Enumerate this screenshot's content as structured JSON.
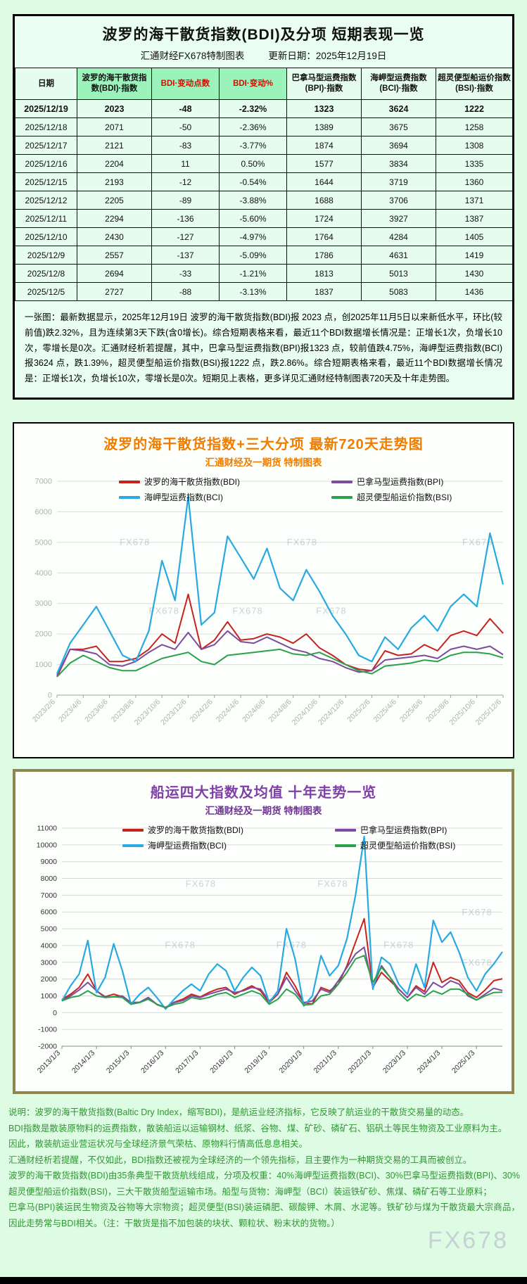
{
  "colors": {
    "page_bg": "#defbe4",
    "table_box_bg": "#eafdf2",
    "chart_box_bg": "#fcfffc",
    "table_header_green": "#9bf3bb",
    "table_cell_bg": "#e6fcef",
    "header_red_text": "#cc1100",
    "orange_title": "#ef7d00",
    "purple_title": "#8040a8",
    "footer_green": "#2f9632",
    "bdi_red": "#c62320",
    "bpi_purple": "#7d4ba0",
    "bci_blue": "#27aae1",
    "bsi_green": "#2aa24b",
    "box3_border": "#8f864f"
  },
  "watermark": "FX678",
  "table_section": {
    "title": "波罗的海干散货指数(BDI)及分项 短期表现一览",
    "brand": "汇通财经FX678特制图表",
    "update_date": "更新日期：2025年12月19日",
    "columns": [
      "日期",
      "波罗的海干散货指数(BDI)·指数",
      "BDI·变动点数",
      "BDI·变动%",
      "巴拿马型运费指数(BPI)·指数",
      "海岬型运费指数(BCI)·指数",
      "超灵便型船运价指数(BSI)·指数"
    ],
    "rows": [
      [
        "2025/12/19",
        "2023",
        "-48",
        "-2.32%",
        "1323",
        "3624",
        "1222"
      ],
      [
        "2025/12/18",
        "2071",
        "-50",
        "-2.36%",
        "1389",
        "3675",
        "1258"
      ],
      [
        "2025/12/17",
        "2121",
        "-83",
        "-3.77%",
        "1874",
        "3694",
        "1308"
      ],
      [
        "2025/12/16",
        "2204",
        "11",
        "0.50%",
        "1577",
        "3834",
        "1335"
      ],
      [
        "2025/12/15",
        "2193",
        "-12",
        "-0.54%",
        "1644",
        "3719",
        "1360"
      ],
      [
        "2025/12/12",
        "2205",
        "-89",
        "-3.88%",
        "1688",
        "3706",
        "1371"
      ],
      [
        "2025/12/11",
        "2294",
        "-136",
        "-5.60%",
        "1724",
        "3927",
        "1387"
      ],
      [
        "2025/12/10",
        "2430",
        "-127",
        "-4.97%",
        "1764",
        "4284",
        "1405"
      ],
      [
        "2025/12/9",
        "2557",
        "-137",
        "-5.09%",
        "1786",
        "4631",
        "1419"
      ],
      [
        "2025/12/8",
        "2694",
        "-33",
        "-1.21%",
        "1813",
        "5013",
        "1430"
      ],
      [
        "2025/12/5",
        "2727",
        "-88",
        "-3.13%",
        "1837",
        "5083",
        "1436"
      ]
    ],
    "summary": "一张图：最新数据显示，2025年12月19日 波罗的海干散货指数(BDI)报 2023 点，创2025年11月5日以来新低水平，环比(较前值)跌2.32%，且为连续第3天下跌(含0增长)。综合短期表格来看，最近11个BDI数据增长情况是：正增长1次，负增长10次，零增长是0次。汇通财经析若提醒，其中，巴拿马型运费指数(BPI)报1323 点，较前值跌4.75%，海岬型运费指数(BCI)报3624 点，跌1.39%，超灵便型船运价指数(BSI)报1222 点，跌2.86%。综合短期表格来看，最近11个BDI数据增长情况是：正增长1次，负增长10次，零增长是0次。短期见上表格，更多详见汇通财经特制图表720天及十年走势图。"
  },
  "footer_lines": [
    "说明：波罗的海干散货指数(Baltic Dry Index，缩写BDI)，是航运业经济指标，它反映了航运业的干散货交易量的动态。",
    "BDI指数是散装原物料的运费指数，散装船运以运输钢材、纸浆、谷物、煤、矿砂、磷矿石、铝矾土等民生物资及工业原料为主。",
    "因此，散装航运业营运状况与全球经济景气荣枯、原物料行情高低息息相关。",
    "汇通财经析若提醒，不仅如此，BDI指数还被视为全球经济的一个领先指标，且主要作为一种期货交易的工具而被创立。",
    "波罗的海干散货指数(BDI)由35条典型干散货航线组成，分项及权重：40%海岬型运费指数(BCI)、30%巴拿马型运费指数(BPI)、30%超灵便型船运价指数(BSI)，三大干散货船型运输市场。船型与货物：海岬型（BCI）装运铁矿砂、焦煤、磷矿石等工业原料；",
    "巴拿马(BPI)装运民生物资及谷物等大宗物资；超灵便型(BSI)装运磷肥、碳酸钾、木屑、水泥等。铁矿砂与煤为干散货最大宗商品，因此走势常与BDI相关。（注：干散货是指不加包装的块状、颗粒状、粉末状的货物。）"
  ],
  "chart_data": [
    {
      "id": "bdi-720day",
      "type": "line",
      "title": "波罗的海干散货指数+三大分项  最新720天走势图",
      "subtitle": "汇通财经及一期货 特制图表",
      "ylim": [
        0,
        7000
      ],
      "ytick_step": 1000,
      "grid": true,
      "legend_position": "top-inside",
      "x_tick_labels": [
        "2023/2/6",
        "2023/4/6",
        "2023/6/6",
        "2023/8/6",
        "2023/10/6",
        "2023/12/6",
        "2024/2/6",
        "2024/4/6",
        "2024/6/6",
        "2024/8/6",
        "2024/10/6",
        "2024/12/6",
        "2025/2/6",
        "2025/4/6",
        "2025/6/6",
        "2025/8/6",
        "2025/10/6",
        "2025/12/6"
      ],
      "x_tick_indices": [
        0,
        2,
        4,
        6,
        8,
        10,
        12,
        14,
        16,
        18,
        20,
        22,
        24,
        26,
        28,
        30,
        32,
        34
      ],
      "series": [
        {
          "name": "波罗的海干散货指数(BDI)",
          "color": "#c62320",
          "values": [
            600,
            1500,
            1500,
            1600,
            1100,
            1100,
            1200,
            1500,
            2000,
            1700,
            3300,
            1500,
            1800,
            2400,
            1800,
            1850,
            2000,
            1900,
            1700,
            2000,
            1550,
            1300,
            1000,
            850,
            800,
            1450,
            1300,
            1350,
            1650,
            1450,
            1950,
            2100,
            1950,
            2500,
            2023
          ]
        },
        {
          "name": "巴拿马型运费指数(BPI)",
          "color": "#7d4ba0",
          "values": [
            650,
            1500,
            1450,
            1350,
            1000,
            950,
            1100,
            1400,
            1650,
            1500,
            2050,
            1500,
            1650,
            2100,
            1750,
            1700,
            1900,
            1700,
            1500,
            1400,
            1200,
            1100,
            900,
            750,
            800,
            1150,
            1200,
            1250,
            1300,
            1200,
            1500,
            1600,
            1500,
            1600,
            1323
          ]
        },
        {
          "name": "海岬型运费指数(BCI)",
          "color": "#27aae1",
          "values": [
            700,
            1700,
            2300,
            2900,
            2100,
            1300,
            1100,
            2100,
            4400,
            3100,
            6500,
            2300,
            2700,
            5200,
            4500,
            3800,
            4800,
            3500,
            3100,
            4100,
            3400,
            2600,
            2000,
            1300,
            1100,
            1900,
            1500,
            2200,
            2600,
            2100,
            2900,
            3300,
            2900,
            5300,
            3624
          ]
        },
        {
          "name": "超灵便型船运价指数(BSI)",
          "color": "#2aa24b",
          "values": [
            600,
            1050,
            1300,
            1100,
            900,
            800,
            800,
            1000,
            1200,
            1300,
            1400,
            1100,
            1000,
            1300,
            1350,
            1400,
            1450,
            1500,
            1350,
            1300,
            1400,
            1200,
            1000,
            800,
            700,
            950,
            1000,
            1050,
            1150,
            1100,
            1300,
            1400,
            1400,
            1350,
            1222
          ]
        }
      ],
      "watermarks": [
        [
          0.15,
          0.3
        ],
        [
          0.55,
          0.3
        ],
        [
          0.97,
          0.3
        ],
        [
          0.22,
          0.62
        ],
        [
          0.42,
          0.62
        ],
        [
          0.62,
          0.62
        ]
      ]
    },
    {
      "id": "bdi-10year",
      "type": "line",
      "title": "船运四大指数及均值 十年走势一览",
      "subtitle": "汇通财经及一期货 特制图表",
      "ylim": [
        -2000,
        11000
      ],
      "ytick_step": 1000,
      "grid": true,
      "legend_position": "top-inside",
      "x_tick_labels": [
        "2013/1/3",
        "2014/1/3",
        "2015/1/3",
        "2016/1/3",
        "2017/1/3",
        "2018/1/3",
        "2019/1/3",
        "2020/1/3",
        "2021/1/3",
        "2022/1/3",
        "2023/1/3",
        "2024/1/3",
        "2025/1/3"
      ],
      "x_tick_indices": [
        0,
        4,
        8,
        12,
        16,
        20,
        24,
        28,
        32,
        36,
        40,
        44,
        48
      ],
      "series": [
        {
          "name": "波罗的海干散货指数(BDI)",
          "color": "#c62320",
          "values": [
            780,
            1100,
            1500,
            2300,
            1300,
            950,
            1100,
            950,
            560,
            600,
            900,
            480,
            300,
            620,
            800,
            1100,
            930,
            1200,
            1400,
            1500,
            1100,
            1350,
            1600,
            1300,
            600,
            1100,
            2400,
            1600,
            580,
            520,
            1500,
            1300,
            1700,
            2800,
            4200,
            5600,
            1500,
            2400,
            1900,
            1400,
            900,
            1600,
            1250,
            3000,
            1800,
            2100,
            1900,
            1200,
            900,
            1350,
            1900,
            2023
          ]
        },
        {
          "name": "巴拿马型运费指数(BPI)",
          "color": "#7d4ba0",
          "values": [
            700,
            1000,
            1350,
            1800,
            1300,
            900,
            950,
            1000,
            600,
            620,
            900,
            500,
            320,
            600,
            720,
            1000,
            900,
            1100,
            1250,
            1400,
            1200,
            1300,
            1500,
            1400,
            700,
            1100,
            2100,
            1300,
            600,
            700,
            1400,
            1200,
            1900,
            2700,
            3500,
            3900,
            1500,
            2800,
            2100,
            1400,
            900,
            1500,
            1100,
            1800,
            1500,
            1900,
            1700,
            1000,
            750,
            1100,
            1450,
            1323
          ]
        },
        {
          "name": "海岬型运费指数(BCI)",
          "color": "#27aae1",
          "values": [
            700,
            1600,
            2300,
            4300,
            1200,
            2100,
            4100,
            2500,
            500,
            1100,
            1500,
            900,
            220,
            800,
            1300,
            1700,
            1300,
            2300,
            2900,
            2500,
            1300,
            2100,
            2700,
            2200,
            600,
            1300,
            5000,
            3200,
            400,
            1000,
            3400,
            2200,
            2800,
            4400,
            7000,
            10500,
            1400,
            3300,
            2900,
            1700,
            1100,
            2900,
            1500,
            5500,
            4200,
            4800,
            3600,
            2100,
            1300,
            2300,
            2900,
            3624
          ]
        },
        {
          "name": "超灵便型船运价指数(BSI)",
          "color": "#2aa24b",
          "values": [
            700,
            900,
            1000,
            1300,
            1000,
            900,
            950,
            900,
            500,
            600,
            800,
            500,
            300,
            500,
            600,
            900,
            800,
            900,
            1100,
            1200,
            900,
            1100,
            1300,
            1100,
            500,
            800,
            1400,
            1100,
            450,
            500,
            1000,
            1100,
            1700,
            2400,
            3200,
            3400,
            1800,
            2700,
            2100,
            1200,
            700,
            1100,
            950,
            1300,
            1100,
            1400,
            1400,
            1100,
            750,
            1000,
            1200,
            1222
          ]
        }
      ],
      "watermarks": [
        [
          0.3,
          0.27
        ],
        [
          0.62,
          0.27
        ],
        [
          0.97,
          0.4
        ],
        [
          0.25,
          0.55
        ],
        [
          0.52,
          0.55
        ],
        [
          0.78,
          0.55
        ],
        [
          0.97,
          0.63
        ]
      ]
    }
  ]
}
